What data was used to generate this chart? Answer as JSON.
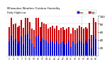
{
  "title": "Milwaukee Weather Outdoor Humidity",
  "subtitle": "Daily High/Low",
  "high_color": "#cc0000",
  "low_color": "#0000cc",
  "background_color": "#ffffff",
  "grid_color": "#cccccc",
  "ylim": [
    0,
    100
  ],
  "yticks": [
    20,
    40,
    60,
    80,
    100
  ],
  "highs": [
    72,
    95,
    78,
    80,
    72,
    75,
    90,
    70,
    95,
    95,
    85,
    68,
    65,
    95,
    95,
    72,
    85,
    80,
    78,
    68,
    72,
    75,
    68,
    75,
    65,
    70,
    72,
    65,
    68,
    72,
    55,
    70,
    65,
    68,
    75,
    72,
    68,
    72,
    68,
    82,
    52,
    95,
    85
  ],
  "lows": [
    35,
    50,
    38,
    42,
    30,
    35,
    48,
    28,
    52,
    55,
    42,
    30,
    22,
    48,
    52,
    35,
    45,
    40,
    38,
    32,
    38,
    35,
    30,
    38,
    28,
    32,
    35,
    28,
    30,
    38,
    22,
    35,
    28,
    32,
    38,
    35,
    30,
    38,
    32,
    42,
    18,
    52,
    42
  ],
  "current_bar_idx": 35,
  "n_bars": 43
}
